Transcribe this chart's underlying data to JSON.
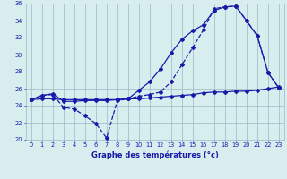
{
  "x": [
    0,
    1,
    2,
    3,
    4,
    5,
    6,
    7,
    8,
    9,
    10,
    11,
    12,
    13,
    14,
    15,
    16,
    17,
    18,
    19,
    20,
    21,
    22,
    23
  ],
  "y_dip": [
    24.7,
    25.2,
    25.3,
    23.8,
    23.6,
    22.8,
    21.9,
    20.2,
    24.6,
    24.8,
    25.1,
    25.3,
    25.6,
    26.8,
    28.8,
    30.8,
    32.9,
    35.4,
    35.6,
    35.7,
    34.0,
    32.2,
    27.9,
    26.1
  ],
  "y_upper": [
    24.7,
    25.2,
    25.4,
    24.5,
    24.5,
    24.6,
    24.6,
    24.6,
    24.7,
    24.8,
    25.8,
    26.8,
    28.3,
    30.2,
    31.8,
    32.8,
    33.5,
    35.2,
    35.6,
    35.7,
    34.0,
    32.2,
    27.9,
    26.1
  ],
  "y_flat": [
    24.7,
    24.8,
    24.8,
    24.7,
    24.7,
    24.7,
    24.7,
    24.7,
    24.7,
    24.8,
    24.8,
    24.9,
    25.0,
    25.1,
    25.2,
    25.3,
    25.5,
    25.6,
    25.6,
    25.7,
    25.7,
    25.8,
    26.0,
    26.2
  ],
  "line_color": "#1a1aaa",
  "bg_color": "#d8eeee",
  "grid_color": "#9ab8c8",
  "xlabel": "Graphe des températures (°c)",
  "ylim": [
    20,
    36
  ],
  "yticks": [
    20,
    22,
    24,
    26,
    28,
    30,
    32,
    34,
    36
  ],
  "xticks": [
    0,
    1,
    2,
    3,
    4,
    5,
    6,
    7,
    8,
    9,
    10,
    11,
    12,
    13,
    14,
    15,
    16,
    17,
    18,
    19,
    20,
    21,
    22,
    23
  ],
  "marker_size": 2.0,
  "linewidth": 0.9,
  "tick_fontsize": 4.8,
  "xlabel_fontsize": 6.0
}
